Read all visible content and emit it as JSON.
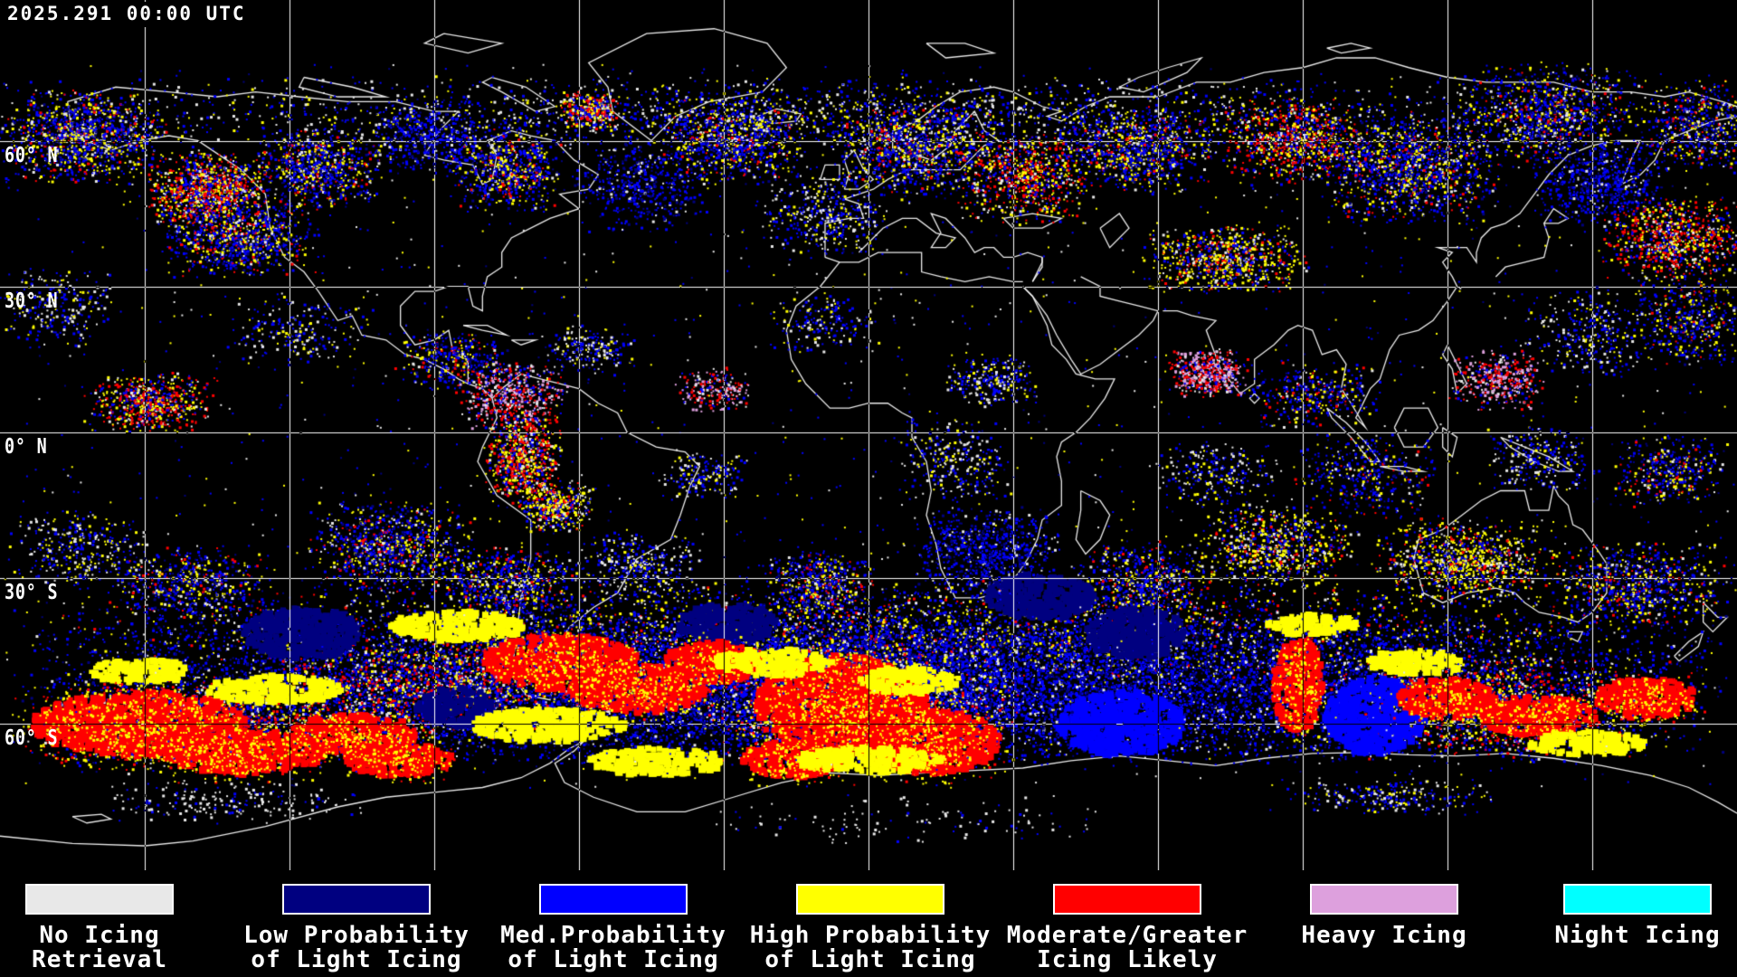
{
  "header": {
    "timestamp": "2025.291 00:00 UTC"
  },
  "map": {
    "lat_labels": [
      "60° N",
      "30° N",
      "0° N",
      "30° S",
      "60° S"
    ],
    "background_color": "#000000",
    "gridline_color": "#ffffff",
    "coastline_color": "#ffffff"
  },
  "legend": {
    "items": [
      {
        "name": "no-icing-retrieval",
        "label_line1": "No Icing",
        "label_line2": "Retrieval",
        "color": "#e8e8e8"
      },
      {
        "name": "low-prob-light-icing",
        "label_line1": "Low Probability",
        "label_line2": "of Light Icing",
        "color": "#000080"
      },
      {
        "name": "med-prob-light-icing",
        "label_line1": "Med.Probability",
        "label_line2": "of Light Icing",
        "color": "#0000ff"
      },
      {
        "name": "high-prob-light-icing",
        "label_line1": "High Probability",
        "label_line2": "of Light Icing",
        "color": "#ffff00"
      },
      {
        "name": "moderate-greater-icing",
        "label_line1": "Moderate/Greater",
        "label_line2": "Icing Likely",
        "color": "#ff0000"
      },
      {
        "name": "heavy-icing",
        "label_line1": "Heavy Icing",
        "label_line2": "",
        "color": "#dda0dd"
      },
      {
        "name": "night-icing",
        "label_line1": "Night Icing",
        "label_line2": "",
        "color": "#00ffff"
      }
    ]
  }
}
